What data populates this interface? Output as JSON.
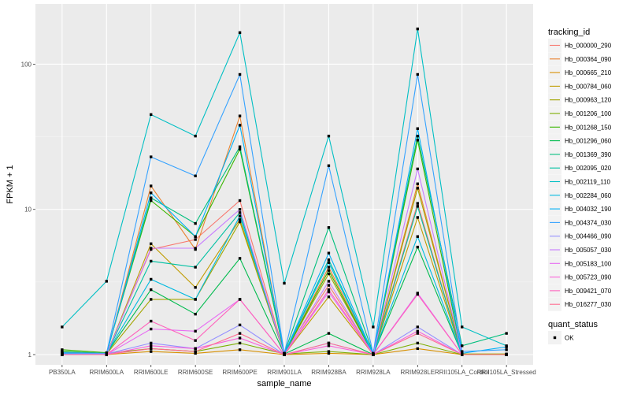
{
  "chart_data": {
    "type": "line",
    "title": "",
    "xlabel": "sample_name",
    "ylabel": "FPKM + 1",
    "y_scale": "log10",
    "ylim": [
      0.85,
      260
    ],
    "y_ticks": [
      1,
      10,
      100
    ],
    "y_tick_labels": [
      "1",
      "10",
      "100"
    ],
    "grid": true,
    "categories": [
      "PB350LA",
      "RRIM600LA",
      "RRIM600LE",
      "RRIM600SE",
      "RRIM600PE",
      "RRIM901LA",
      "RRIM928BA",
      "RRIM928LA",
      "RRIM928LE",
      "RRII105LA_Control",
      "RRII105LA_Stressed"
    ],
    "legend_position": "right",
    "legend_title": "tracking_id",
    "shape_legend_title": "quant_status",
    "shape_legend_items": [
      "OK"
    ],
    "series": [
      {
        "name": "Hb_000000_290",
        "color": "#F8766D",
        "values": [
          1.02,
          1.01,
          5.3,
          6.2,
          11.5,
          1.02,
          3.0,
          1.01,
          11.0,
          1.0,
          1.0
        ]
      },
      {
        "name": "Hb_000364_090",
        "color": "#EA8331",
        "values": [
          1.0,
          1.0,
          14.5,
          5.3,
          44,
          1.0,
          4.0,
          1.0,
          15,
          1.0,
          1.0
        ]
      },
      {
        "name": "Hb_000665_210",
        "color": "#D89000",
        "values": [
          1.0,
          1.0,
          1.05,
          1.02,
          1.08,
          1.0,
          1.02,
          1.0,
          1.1,
          1.0,
          1.0
        ]
      },
      {
        "name": "Hb_000784_060",
        "color": "#C09B00",
        "values": [
          1.02,
          1.0,
          5.8,
          2.9,
          8.5,
          1.0,
          2.5,
          1.0,
          8.8,
          1.0,
          1.0
        ]
      },
      {
        "name": "Hb_000963_120",
        "color": "#A3A500",
        "values": [
          1.03,
          1.01,
          2.4,
          2.4,
          8.2,
          1.01,
          3.6,
          1.01,
          14,
          1.01,
          1.01
        ]
      },
      {
        "name": "Hb_001206_100",
        "color": "#7CAE00",
        "values": [
          1.05,
          1.02,
          1.1,
          1.05,
          1.2,
          1.01,
          1.05,
          1.0,
          1.2,
          1.0,
          1.0
        ]
      },
      {
        "name": "Hb_001268_150",
        "color": "#39B600",
        "values": [
          1.08,
          1.03,
          11.5,
          6.5,
          26,
          1.01,
          3.8,
          1.0,
          30,
          1.0,
          1.0
        ]
      },
      {
        "name": "Hb_001296_060",
        "color": "#00BB4E",
        "values": [
          1.05,
          1.02,
          2.8,
          1.9,
          4.6,
          1.01,
          1.4,
          1.0,
          5.5,
          1.0,
          1.0
        ]
      },
      {
        "name": "Hb_001369_390",
        "color": "#00BF7D",
        "values": [
          1.03,
          1.02,
          12,
          8,
          27,
          1.02,
          7.5,
          1.02,
          32,
          1.15,
          1.4
        ]
      },
      {
        "name": "Hb_002095_020",
        "color": "#00C1A3",
        "values": [
          1.02,
          1.01,
          4.4,
          4,
          9.5,
          1.01,
          4.5,
          1.0,
          10.5,
          1.0,
          1.0
        ]
      },
      {
        "name": "Hb_002119_110",
        "color": "#00BFC4",
        "values": [
          1.55,
          3.2,
          45,
          32,
          165,
          3.1,
          32,
          1.55,
          175,
          1.55,
          1.15
        ]
      },
      {
        "name": "Hb_002284_060",
        "color": "#00BAE0",
        "values": [
          1.02,
          1.02,
          3.3,
          2.4,
          9,
          1.01,
          4.3,
          1.0,
          6.5,
          1.0,
          1.0
        ]
      },
      {
        "name": "Hb_004032_190",
        "color": "#00B0F6",
        "values": [
          1.01,
          1.01,
          13,
          6.5,
          38,
          1.01,
          5,
          1.01,
          36,
          1.02,
          1.13
        ]
      },
      {
        "name": "Hb_004374_030",
        "color": "#35A2FF",
        "values": [
          1.03,
          1.02,
          23,
          17,
          85,
          1.02,
          20,
          1.02,
          85,
          1.05,
          1.08
        ]
      },
      {
        "name": "Hb_004466_090",
        "color": "#9590FF",
        "values": [
          1.01,
          1.01,
          1.2,
          1.1,
          1.6,
          1.0,
          1.2,
          1.0,
          1.55,
          1.0,
          1.0
        ]
      },
      {
        "name": "Hb_005057_030",
        "color": "#C77CFF",
        "values": [
          1.0,
          1.0,
          5.4,
          5.4,
          10,
          1.0,
          3.2,
          1.0,
          19,
          1.0,
          1.0
        ]
      },
      {
        "name": "Hb_005183_100",
        "color": "#E76BF3",
        "values": [
          1.0,
          1.0,
          1.5,
          1.45,
          2.4,
          1.0,
          2.7,
          1.0,
          2.65,
          1.0,
          1.0
        ]
      },
      {
        "name": "Hb_005723_090",
        "color": "#FA62DB",
        "values": [
          1.0,
          1.0,
          1.15,
          1.1,
          1.3,
          1.0,
          1.15,
          1.0,
          1.45,
          1.0,
          1.0
        ]
      },
      {
        "name": "Hb_009421_070",
        "color": "#FF62BC",
        "values": [
          1.0,
          1.0,
          1.7,
          1.25,
          2.4,
          1.0,
          2.8,
          1.0,
          2.6,
          1.0,
          1.0
        ]
      },
      {
        "name": "Hb_016277_030",
        "color": "#FF6C91",
        "values": [
          1.0,
          1.0,
          1.1,
          1.05,
          1.4,
          1.0,
          1.2,
          1.0,
          1.4,
          1.0,
          1.0
        ]
      }
    ]
  }
}
